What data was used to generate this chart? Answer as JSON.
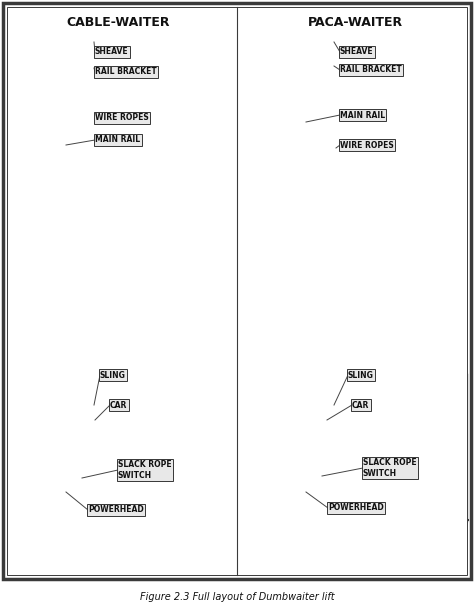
{
  "bg_color": "#ffffff",
  "border_color": "#2a2a2a",
  "caption": "Figure 2.3 Full layout of Dumbwaiter lift",
  "left_title": "CABLE-WAITER",
  "right_title": "PACA-WAITER",
  "title_fontsize": 9,
  "label_fontsize": 5.5,
  "caption_fontsize": 7,
  "draw_color": "#3a3a3a",
  "fill_light": "#d8d8d8",
  "fill_mid": "#c0c0c0",
  "fill_dark": "#a0a0a0",
  "label_bg": "#e8e8e8"
}
